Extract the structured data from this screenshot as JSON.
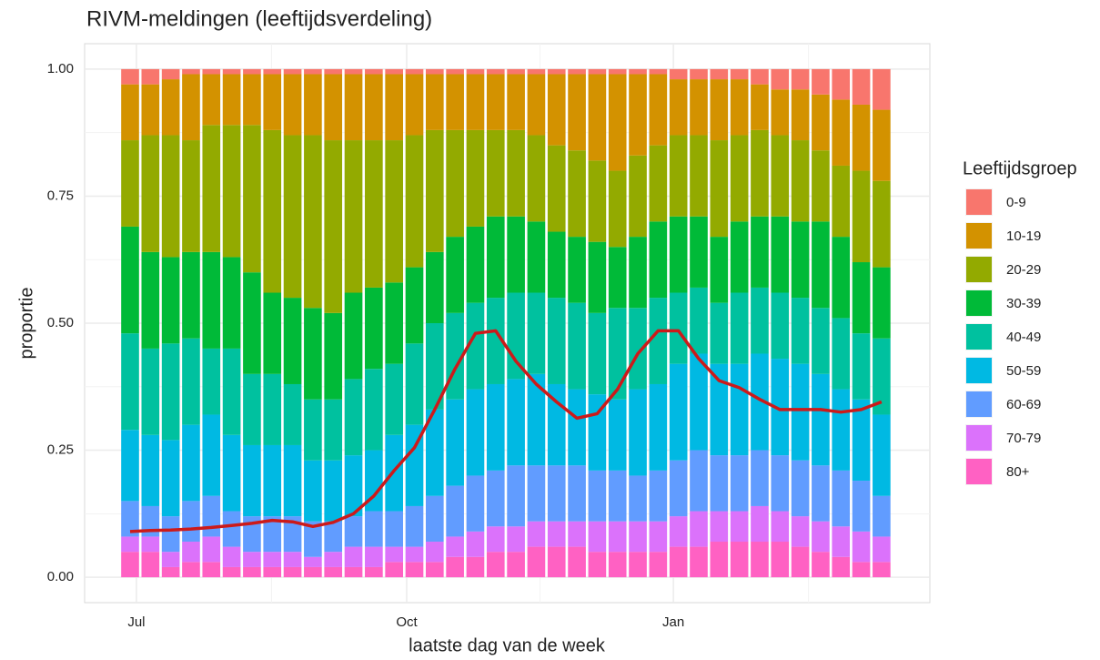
{
  "chart_data": {
    "type": "stacked_bar",
    "title": "RIVM-meldingen (leeftijdsverdeling)",
    "x_label": "laatste dag van de week",
    "y_label": "proportie",
    "legend_title": "Leeftijdsgroep",
    "legend_position": "right",
    "grid": true,
    "categories": [
      null,
      null,
      null,
      null,
      null,
      null,
      null,
      null,
      null,
      null,
      null,
      null,
      null,
      null,
      null,
      null,
      null,
      null,
      null,
      null,
      null,
      null,
      null,
      null,
      null,
      null,
      null,
      null,
      null,
      null,
      null,
      null,
      null,
      null,
      null,
      null,
      null,
      null
    ],
    "xlim": [
      -2.24,
      39.38
    ],
    "xticks": [
      {
        "value": 0.31,
        "label": "Jul"
      },
      {
        "value": 13.62,
        "label": "Oct"
      },
      {
        "value": 26.75,
        "label": "Jan"
      }
    ],
    "ylim": [
      -0.05,
      1.05
    ],
    "yticks": [
      {
        "value": 0,
        "label": "0.00"
      },
      {
        "value": 0.25,
        "label": "0.25"
      },
      {
        "value": 0.5,
        "label": "0.50"
      },
      {
        "value": 0.75,
        "label": "0.75"
      },
      {
        "value": 1,
        "label": "1.00"
      }
    ],
    "series": [
      {
        "name": "0-9",
        "color": "#F8766D",
        "values": [
          0.03,
          0.03,
          0.02,
          0.01,
          0.01,
          0.01,
          0.01,
          0.01,
          0.01,
          0.01,
          0.01,
          0.01,
          0.01,
          0.01,
          0.01,
          0.01,
          0.01,
          0.01,
          0.01,
          0.01,
          0.01,
          0.01,
          0.01,
          0.01,
          0.01,
          0.01,
          0.01,
          0.02,
          0.02,
          0.02,
          0.02,
          0.03,
          0.04,
          0.04,
          0.05,
          0.06,
          0.07,
          0.08
        ]
      },
      {
        "name": "10-19",
        "color": "#D39200",
        "values": [
          0.11,
          0.1,
          0.11,
          0.13,
          0.1,
          0.1,
          0.1,
          0.11,
          0.12,
          0.12,
          0.13,
          0.13,
          0.13,
          0.13,
          0.12,
          0.11,
          0.11,
          0.11,
          0.11,
          0.11,
          0.12,
          0.14,
          0.15,
          0.17,
          0.19,
          0.16,
          0.14,
          0.11,
          0.11,
          0.12,
          0.11,
          0.09,
          0.09,
          0.1,
          0.11,
          0.13,
          0.13,
          0.14
        ]
      },
      {
        "name": "20-29",
        "color": "#93AA00",
        "values": [
          0.17,
          0.23,
          0.24,
          0.22,
          0.25,
          0.26,
          0.29,
          0.32,
          0.32,
          0.34,
          0.34,
          0.3,
          0.29,
          0.28,
          0.26,
          0.24,
          0.21,
          0.19,
          0.17,
          0.17,
          0.17,
          0.17,
          0.17,
          0.16,
          0.15,
          0.16,
          0.15,
          0.16,
          0.16,
          0.19,
          0.17,
          0.17,
          0.16,
          0.16,
          0.14,
          0.14,
          0.18,
          0.17
        ]
      },
      {
        "name": "30-39",
        "color": "#00BA38",
        "values": [
          0.21,
          0.19,
          0.17,
          0.17,
          0.19,
          0.18,
          0.2,
          0.16,
          0.17,
          0.18,
          0.17,
          0.17,
          0.16,
          0.16,
          0.15,
          0.14,
          0.15,
          0.15,
          0.16,
          0.15,
          0.14,
          0.13,
          0.13,
          0.14,
          0.12,
          0.14,
          0.15,
          0.15,
          0.14,
          0.13,
          0.14,
          0.14,
          0.15,
          0.15,
          0.17,
          0.16,
          0.14,
          0.14
        ]
      },
      {
        "name": "40-49",
        "color": "#00C19F",
        "values": [
          0.19,
          0.17,
          0.19,
          0.17,
          0.13,
          0.17,
          0.14,
          0.14,
          0.12,
          0.12,
          0.12,
          0.15,
          0.16,
          0.14,
          0.16,
          0.17,
          0.17,
          0.17,
          0.17,
          0.17,
          0.16,
          0.17,
          0.17,
          0.16,
          0.18,
          0.16,
          0.17,
          0.14,
          0.13,
          0.12,
          0.14,
          0.13,
          0.13,
          0.13,
          0.13,
          0.14,
          0.13,
          0.15
        ]
      },
      {
        "name": "50-59",
        "color": "#00B9E3",
        "values": [
          0.14,
          0.14,
          0.15,
          0.15,
          0.16,
          0.15,
          0.14,
          0.14,
          0.14,
          0.12,
          0.12,
          0.12,
          0.12,
          0.15,
          0.16,
          0.17,
          0.17,
          0.17,
          0.17,
          0.17,
          0.18,
          0.16,
          0.15,
          0.15,
          0.14,
          0.17,
          0.17,
          0.19,
          0.19,
          0.18,
          0.18,
          0.19,
          0.19,
          0.19,
          0.18,
          0.16,
          0.16,
          0.16
        ]
      },
      {
        "name": "60-69",
        "color": "#619CFF",
        "values": [
          0.07,
          0.06,
          0.07,
          0.08,
          0.08,
          0.07,
          0.07,
          0.07,
          0.07,
          0.07,
          0.06,
          0.06,
          0.07,
          0.07,
          0.08,
          0.09,
          0.1,
          0.11,
          0.11,
          0.12,
          0.11,
          0.11,
          0.11,
          0.1,
          0.1,
          0.09,
          0.1,
          0.11,
          0.12,
          0.11,
          0.11,
          0.11,
          0.11,
          0.11,
          0.11,
          0.11,
          0.1,
          0.08
        ]
      },
      {
        "name": "70-79",
        "color": "#DB72FB",
        "values": [
          0.03,
          0.03,
          0.03,
          0.04,
          0.05,
          0.04,
          0.03,
          0.03,
          0.03,
          0.02,
          0.03,
          0.04,
          0.04,
          0.03,
          0.03,
          0.04,
          0.04,
          0.05,
          0.05,
          0.05,
          0.05,
          0.05,
          0.05,
          0.06,
          0.06,
          0.06,
          0.06,
          0.06,
          0.07,
          0.06,
          0.06,
          0.07,
          0.06,
          0.06,
          0.06,
          0.06,
          0.06,
          0.05
        ]
      },
      {
        "name": "80+",
        "color": "#FF61C3",
        "values": [
          0.05,
          0.05,
          0.02,
          0.03,
          0.03,
          0.02,
          0.02,
          0.02,
          0.02,
          0.02,
          0.02,
          0.02,
          0.02,
          0.03,
          0.03,
          0.03,
          0.04,
          0.04,
          0.05,
          0.05,
          0.06,
          0.06,
          0.06,
          0.05,
          0.05,
          0.05,
          0.05,
          0.06,
          0.06,
          0.07,
          0.07,
          0.07,
          0.07,
          0.06,
          0.05,
          0.04,
          0.03,
          0.03
        ]
      }
    ],
    "line": {
      "color": "#CC1A1A",
      "values": [
        0.09,
        0.092,
        0.093,
        0.095,
        0.098,
        0.102,
        0.106,
        0.112,
        0.109,
        0.1,
        0.108,
        0.125,
        0.16,
        0.21,
        0.255,
        0.33,
        0.41,
        0.48,
        0.485,
        0.425,
        0.38,
        0.345,
        0.313,
        0.322,
        0.37,
        0.44,
        0.485,
        0.485,
        0.43,
        0.387,
        0.373,
        0.35,
        0.33,
        0.33,
        0.33,
        0.325,
        0.33,
        0.345
      ]
    }
  }
}
